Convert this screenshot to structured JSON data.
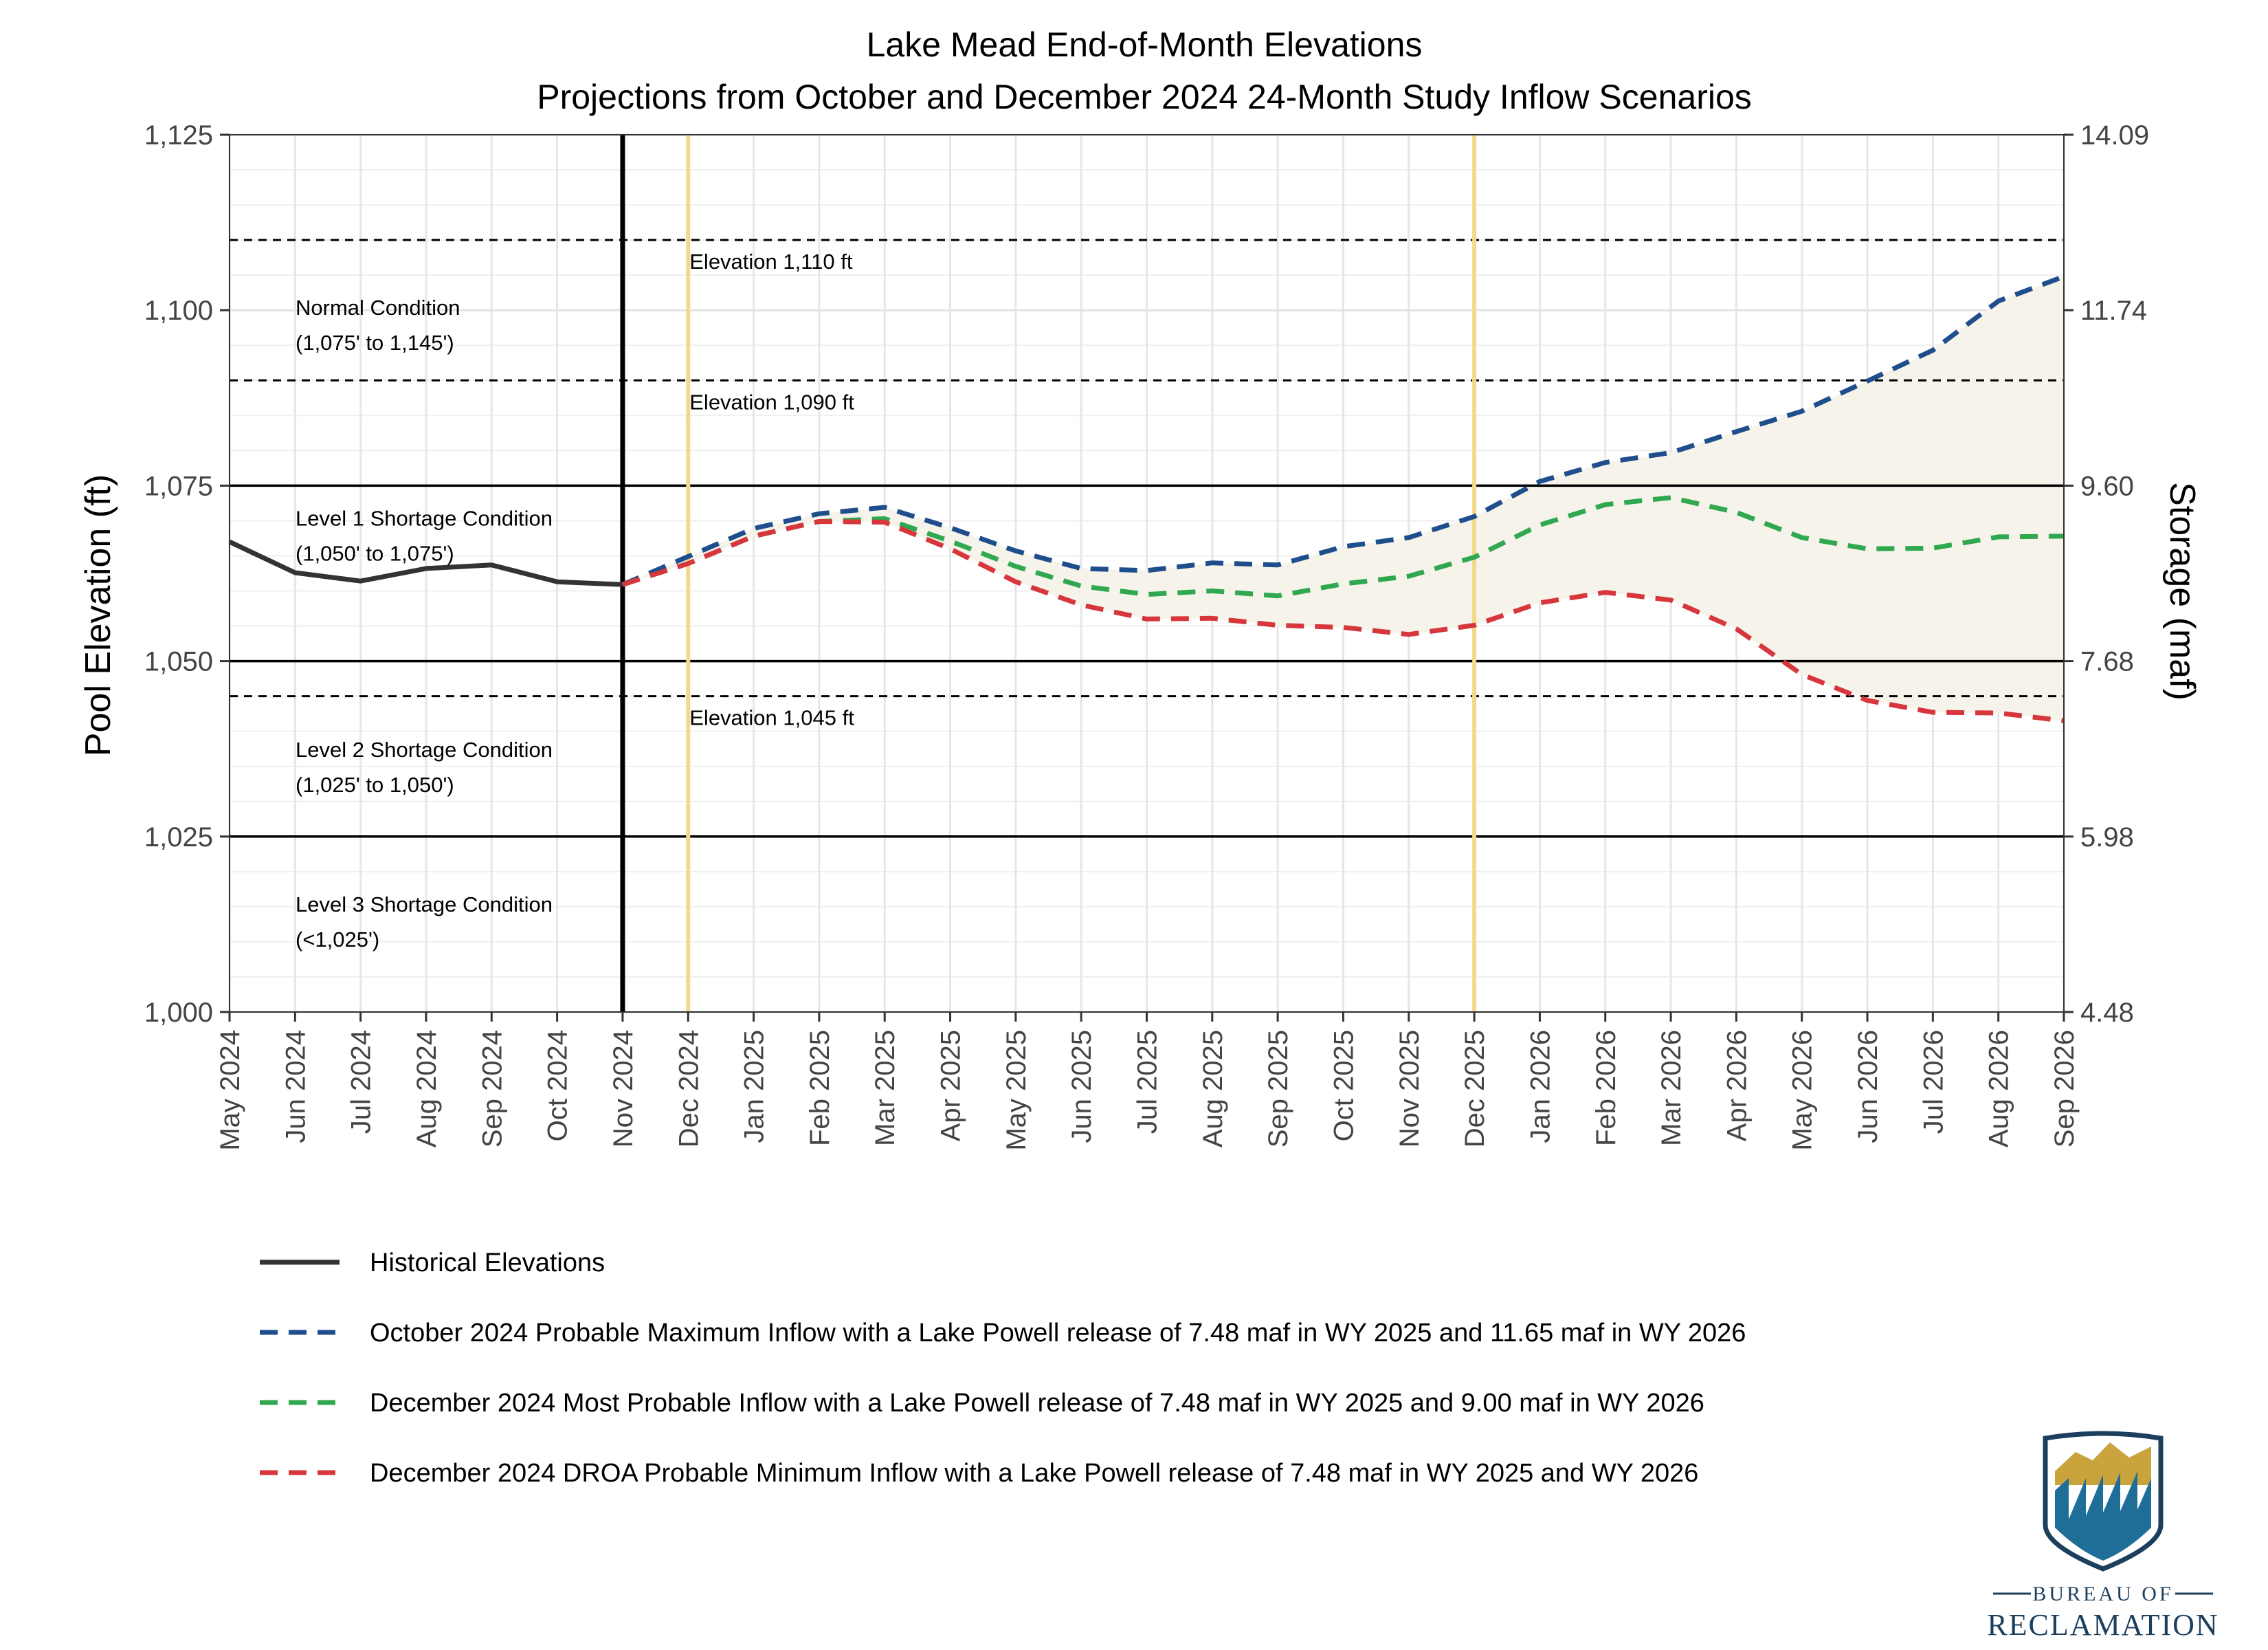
{
  "chart_data": {
    "type": "line",
    "title": "Lake Mead End-of-Month Elevations",
    "subtitle": "Projections from October and December 2024 24-Month Study Inflow Scenarios",
    "ylabel": "Pool Elevation (ft)",
    "y2label": "Storage (maf)",
    "ylim": [
      1000,
      1125
    ],
    "yticks": [
      1000,
      1025,
      1050,
      1075,
      1100,
      1125
    ],
    "ytick_labels": [
      "1,000",
      "1,025",
      "1,050",
      "1,075",
      "1,100",
      "1,125"
    ],
    "y2tick_labels": [
      "4.48",
      "5.98",
      "7.68",
      "9.60",
      "11.74",
      "14.09"
    ],
    "x": [
      "May 2024",
      "Jun 2024",
      "Jul 2024",
      "Aug 2024",
      "Sep 2024",
      "Oct 2024",
      "Nov 2024",
      "Dec 2024",
      "Jan 2025",
      "Feb 2025",
      "Mar 2025",
      "Apr 2025",
      "May 2025",
      "Jun 2025",
      "Jul 2025",
      "Aug 2025",
      "Sep 2025",
      "Oct 2025",
      "Nov 2025",
      "Dec 2025",
      "Jan 2026",
      "Feb 2026",
      "Mar 2026",
      "Apr 2026",
      "May 2026",
      "Jun 2026",
      "Jul 2026",
      "Aug 2026",
      "Sep 2026"
    ],
    "grid": true,
    "series": [
      {
        "name": "Historical Elevations",
        "color": "#333333",
        "style": "solid",
        "values": [
          1067.0,
          1062.6,
          1061.4,
          1063.2,
          1063.7,
          1061.3,
          1060.9,
          null,
          null,
          null,
          null,
          null,
          null,
          null,
          null,
          null,
          null,
          null,
          null,
          null,
          null,
          null,
          null,
          null,
          null,
          null,
          null,
          null,
          null
        ]
      },
      {
        "name": "October 2024 Probable Maximum Inflow with a Lake Powell release of 7.48 maf in WY 2025 and 11.65 maf in WY 2026",
        "color": "#1f4e8c",
        "style": "dashed",
        "values": [
          null,
          null,
          null,
          null,
          null,
          null,
          1060.9,
          1064.9,
          1068.9,
          1071.0,
          1071.9,
          1069.0,
          1065.7,
          1063.2,
          1062.9,
          1064.0,
          1063.7,
          1066.3,
          1067.6,
          1070.6,
          1075.6,
          1078.3,
          1079.7,
          1082.7,
          1085.6,
          1089.9,
          1094.3,
          1101.3,
          1104.8
        ]
      },
      {
        "name": "December 2024 Most Probable Inflow with a Lake Powell release of 7.48 maf in WY 2025 and 9.00 maf in WY 2026",
        "color": "#2fa84f",
        "style": "dashed",
        "values": [
          null,
          null,
          null,
          null,
          null,
          null,
          1060.9,
          1063.9,
          1067.8,
          1069.9,
          1070.3,
          1067.1,
          1063.5,
          1060.7,
          1059.5,
          1060.0,
          1059.3,
          1061.0,
          1062.1,
          1064.8,
          1069.4,
          1072.3,
          1073.3,
          1071.2,
          1067.6,
          1066.0,
          1066.1,
          1067.7,
          1067.8
        ]
      },
      {
        "name": "December 2024 DROA Probable Minimum Inflow with a Lake Powell release of 7.48 maf in WY 2025 and WY 2026",
        "color": "#d7363d",
        "style": "dashed",
        "values": [
          null,
          null,
          null,
          null,
          null,
          null,
          1060.9,
          1063.9,
          1067.8,
          1069.9,
          1069.8,
          1066.0,
          1061.3,
          1058.0,
          1056.0,
          1056.1,
          1055.1,
          1054.8,
          1053.8,
          1055.1,
          1058.3,
          1059.8,
          1058.7,
          1054.6,
          1048.1,
          1044.4,
          1042.7,
          1042.6,
          1041.5
        ]
      }
    ],
    "horizontal_lines": [
      {
        "y": 1110,
        "style": "dashed",
        "label": "Elevation 1,110 ft"
      },
      {
        "y": 1090,
        "style": "dashed",
        "label": "Elevation 1,090 ft"
      },
      {
        "y": 1045,
        "style": "dashed",
        "label": "Elevation 1,045 ft"
      },
      {
        "y": 1075,
        "style": "solid"
      },
      {
        "y": 1050,
        "style": "solid"
      },
      {
        "y": 1025,
        "style": "solid"
      }
    ],
    "vertical_lines": [
      {
        "x": "Nov 2024",
        "color": "#000000"
      },
      {
        "x": "Dec 2024",
        "color": "#f5d98b"
      },
      {
        "x": "Dec 2025",
        "color": "#f5d98b"
      }
    ],
    "condition_labels": [
      {
        "line1": "Normal Condition",
        "line2": "(1,075' to 1,145')"
      },
      {
        "line1": "Level 1 Shortage Condition",
        "line2": "(1,050' to 1,075')"
      },
      {
        "line1": "Level 2 Shortage Condition",
        "line2": "(1,025' to 1,050')"
      },
      {
        "line1": "Level 3 Shortage Condition",
        "line2": "(<1,025')"
      }
    ],
    "legend_position": "bottom",
    "band_fill": "#f6f3ea"
  },
  "logo": {
    "top_text": "BUREAU OF",
    "bottom_text": "RECLAMATION"
  }
}
